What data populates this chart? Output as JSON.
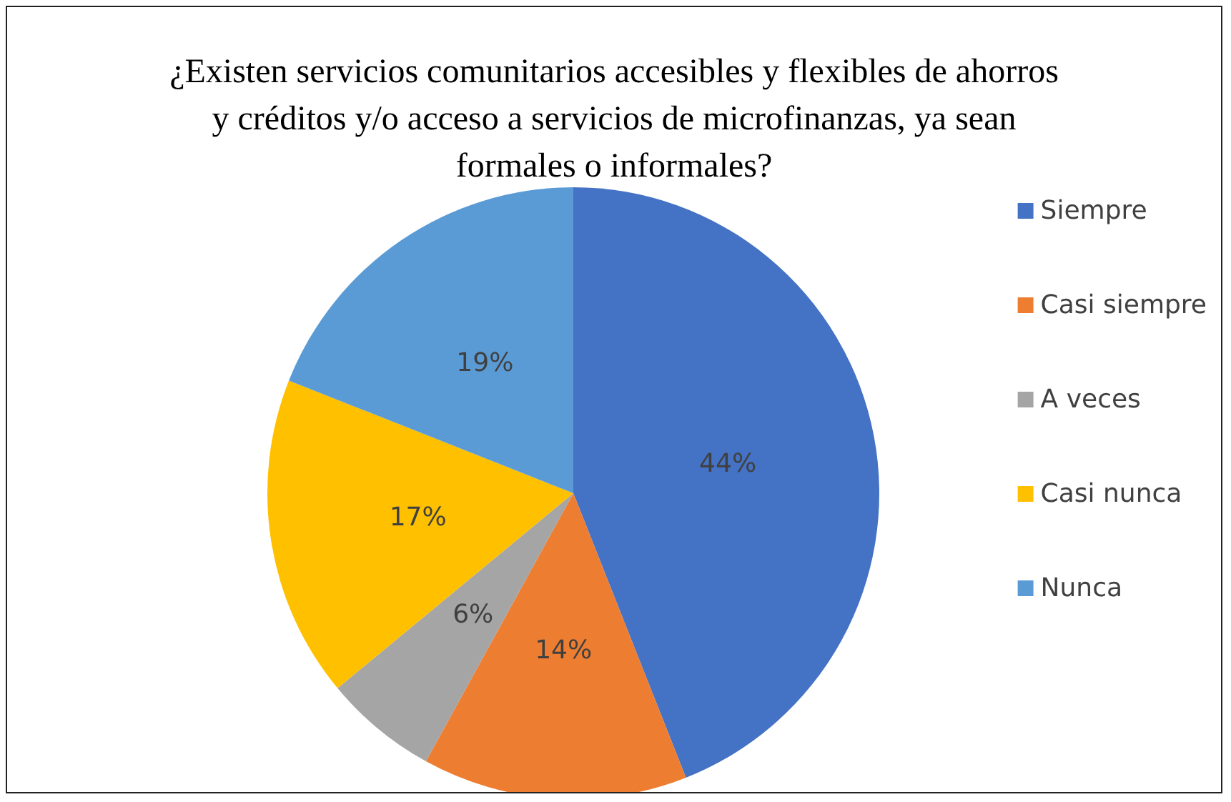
{
  "chart_data": {
    "type": "pie",
    "title": "¿Existen servicios comunitarios accesibles y flexibles de ahorros y créditos y/o acceso a servicios de microfinanzas, ya sean formales o informales?",
    "categories": [
      "Siempre",
      "Casi siempre",
      "A veces",
      "Casi nunca",
      "Nunca"
    ],
    "values": [
      44,
      14,
      6,
      17,
      19
    ],
    "value_labels": [
      "44%",
      "14%",
      "6%",
      "17%",
      "19%"
    ],
    "colors": [
      "#4472c4",
      "#ed7d31",
      "#a5a5a5",
      "#ffc000",
      "#5b9bd5"
    ],
    "legend": "right"
  }
}
